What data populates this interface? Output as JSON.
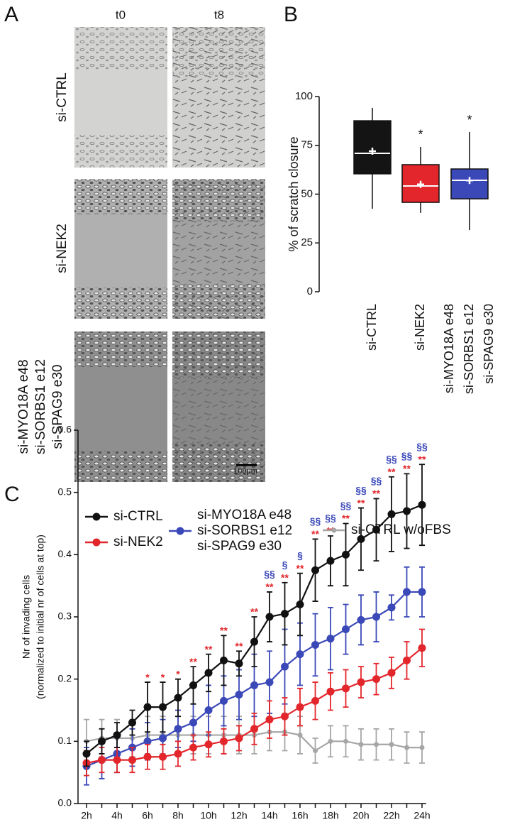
{
  "panel_a": {
    "label": "A",
    "columns": [
      "t0",
      "t8"
    ],
    "rows": [
      "si-CTRL",
      "si-NEK2",
      [
        "si-MYO18A e48",
        "si-SORBS1 e12",
        "si-SPAG9 e30"
      ]
    ],
    "scale_bar": "100µm"
  },
  "chart_data": [
    {
      "type": "box",
      "panel_label": "B",
      "ylabel": "% of scratch closure",
      "categories": [
        "si-CTRL",
        "si-NEK2",
        [
          "si-MYO18A e48",
          "si-SORBS1 e12",
          "si-SPAG9 e30"
        ]
      ],
      "colors": [
        "#141414",
        "#e3262b",
        "#3a48b8"
      ],
      "low": [
        42.5,
        40.4,
        31.6
      ],
      "q1": [
        60.4,
        45.8,
        47.6
      ],
      "median": [
        70.9,
        54.2,
        57.1
      ],
      "q3": [
        87.6,
        65.1,
        62.9
      ],
      "high": [
        94.2,
        74.2,
        81.8
      ],
      "mean": [
        72,
        55,
        57
      ],
      "significance": [
        null,
        "*",
        "*"
      ],
      "ylim": [
        0,
        100
      ],
      "yticks": [
        0,
        25,
        50,
        75,
        100
      ]
    },
    {
      "type": "line",
      "panel_label": "C",
      "ylabel": [
        "Nr of invading cells",
        "(normalized to initial nr of cells at top)"
      ],
      "categories": [
        "2h",
        null,
        "4h",
        null,
        "6h",
        null,
        "8h",
        null,
        "10h",
        null,
        "12h",
        null,
        "14h",
        null,
        "16h",
        null,
        "18h",
        null,
        "20h",
        null,
        "22h",
        null,
        "24h"
      ],
      "series": [
        {
          "name": "si-CTRL",
          "color": "#111111",
          "values": [
            0.08,
            0.1,
            0.11,
            0.13,
            0.155,
            0.155,
            0.17,
            0.19,
            0.21,
            0.23,
            0.225,
            0.26,
            0.3,
            0.305,
            0.32,
            0.375,
            0.39,
            0.4,
            0.425,
            0.44,
            0.465,
            0.47,
            0.48
          ],
          "errors": [
            0.02,
            0.02,
            0.02,
            0.02,
            0.04,
            0.04,
            0.03,
            0.03,
            0.03,
            0.04,
            0.02,
            0.04,
            0.04,
            0.05,
            0.05,
            0.05,
            0.04,
            0.05,
            0.05,
            0.05,
            0.06,
            0.06,
            0.065
          ]
        },
        {
          "name": "si-NEK2",
          "color": "#e3262b",
          "values": [
            0.065,
            0.07,
            0.07,
            0.07,
            0.075,
            0.075,
            0.08,
            0.09,
            0.095,
            0.1,
            0.105,
            0.12,
            0.135,
            0.14,
            0.155,
            0.165,
            0.18,
            0.185,
            0.195,
            0.2,
            0.21,
            0.23,
            0.25
          ],
          "errors": [
            0.02,
            0.02,
            0.02,
            0.02,
            0.02,
            0.02,
            0.02,
            0.02,
            0.02,
            0.02,
            0.02,
            0.025,
            0.03,
            0.03,
            0.03,
            0.03,
            0.03,
            0.03,
            0.025,
            0.025,
            0.025,
            0.03,
            0.03
          ],
          "significance": [
            null,
            null,
            null,
            null,
            "*",
            "*",
            "*",
            "**",
            "**",
            "**",
            "**",
            "**",
            "**",
            "**",
            "**",
            "**",
            "**",
            "**",
            "**",
            "**",
            "**",
            "**",
            "**"
          ]
        },
        {
          "name": [
            "si-MYO18A e48",
            "si-SORBS1 e12",
            "si-SPAG9 e30"
          ],
          "color": "#3a48b8",
          "values": [
            0.06,
            0.07,
            0.08,
            0.09,
            0.1,
            0.105,
            0.12,
            0.13,
            0.15,
            0.165,
            0.175,
            0.19,
            0.195,
            0.22,
            0.24,
            0.255,
            0.265,
            0.28,
            0.295,
            0.3,
            0.315,
            0.34,
            0.34
          ],
          "errors": [
            0.03,
            0.03,
            0.03,
            0.03,
            0.03,
            0.03,
            0.03,
            0.03,
            0.04,
            0.04,
            0.04,
            0.05,
            0.05,
            0.06,
            0.05,
            0.05,
            0.05,
            0.04,
            0.04,
            0.04,
            0.02,
            0.04,
            0.04
          ],
          "significance": [
            null,
            null,
            null,
            null,
            null,
            null,
            null,
            null,
            null,
            null,
            null,
            null,
            "§§",
            "§",
            "§",
            "§§",
            "§§",
            "§§",
            "§§",
            "§§",
            "§§",
            "§§",
            "§§"
          ]
        },
        {
          "name": "si-CTRL w/oFBS",
          "color": "#a6a6a6",
          "values": [
            0.1,
            0.105,
            0.105,
            0.105,
            0.11,
            0.11,
            0.11,
            0.11,
            0.11,
            0.11,
            0.11,
            0.11,
            0.115,
            0.115,
            0.11,
            0.085,
            0.1,
            0.1,
            0.095,
            0.095,
            0.095,
            0.09,
            0.09
          ],
          "errors": [
            0.035,
            0.03,
            0.03,
            0.03,
            0.03,
            0.03,
            0.03,
            0.03,
            0.03,
            0.03,
            0.03,
            0.03,
            0.03,
            0.03,
            0.03,
            0.02,
            0.025,
            0.025,
            0.025,
            0.025,
            0.025,
            0.025,
            0.025
          ]
        }
      ],
      "ylim": [
        0,
        0.6
      ],
      "yticks": [
        {
          "value": 0,
          "label": "0.0"
        },
        0.1,
        0.2,
        0.3,
        0.4,
        0.5,
        0.6
      ]
    }
  ]
}
